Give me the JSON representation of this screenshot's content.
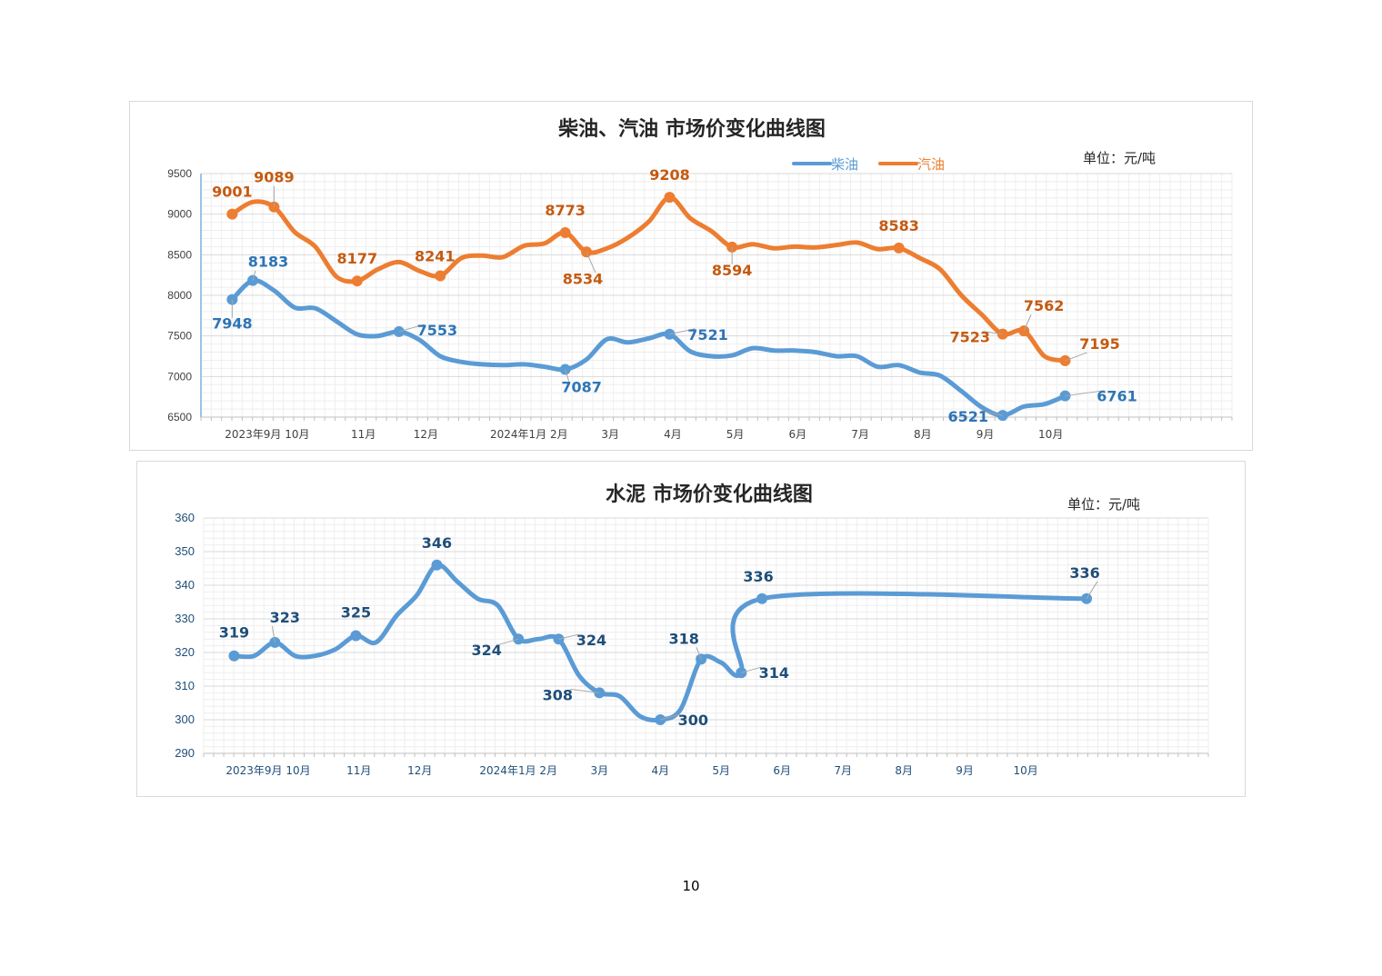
{
  "page_number": "10",
  "colors": {
    "diesel": "#5b9bd5",
    "diesel_label": "#2e75b6",
    "gasoline": "#ed7d31",
    "gasoline_label": "#c55a11",
    "cement": "#5b9bd5",
    "cement_label": "#1f4e79",
    "grid_major": "#d9d9d9",
    "grid_minor": "#eeeeee",
    "axis_text": "#404040",
    "axis_text_blue": "#1f4e79"
  },
  "chart_data": [
    {
      "type": "line",
      "title": "柴油、汽油  市场价变化曲线图",
      "unit": "单位：元/吨",
      "ylim": [
        6500,
        9500
      ],
      "yticks": [
        6500,
        7000,
        7500,
        8000,
        8500,
        9000,
        9500
      ],
      "xlim": [
        0,
        16.5
      ],
      "x_tick_labels": [
        {
          "x": 1.06,
          "label": "2023年9月 10月"
        },
        {
          "x": 2.6,
          "label": "11月"
        },
        {
          "x": 3.6,
          "label": "12月"
        },
        {
          "x": 5.25,
          "label": "2024年1月 2月"
        },
        {
          "x": 6.55,
          "label": "3月"
        },
        {
          "x": 7.55,
          "label": "4月"
        },
        {
          "x": 8.55,
          "label": "5月"
        },
        {
          "x": 9.55,
          "label": "6月"
        },
        {
          "x": 10.55,
          "label": "7月"
        },
        {
          "x": 11.55,
          "label": "8月"
        },
        {
          "x": 12.55,
          "label": "9月"
        },
        {
          "x": 13.6,
          "label": "10月"
        }
      ],
      "grid": true,
      "legend": {
        "position": "top-center",
        "entries": [
          "柴油",
          "汽油"
        ]
      },
      "series": [
        {
          "name": "柴油",
          "x": [
            0.5,
            0.83,
            1.17,
            1.5,
            1.83,
            2.17,
            2.5,
            2.83,
            3.17,
            3.5,
            3.83,
            4.17,
            4.5,
            4.83,
            5.17,
            5.5,
            5.83,
            6.17,
            6.5,
            6.83,
            7.17,
            7.5,
            7.83,
            8.17,
            8.5,
            8.83,
            9.17,
            9.5,
            9.83,
            10.17,
            10.5,
            10.83,
            11.17,
            11.5,
            11.83,
            12.17,
            12.5,
            12.83,
            13.17,
            13.5,
            13.83
          ],
          "values": [
            7948,
            8183,
            8060,
            7850,
            7840,
            7680,
            7520,
            7500,
            7553,
            7450,
            7250,
            7180,
            7150,
            7140,
            7150,
            7120,
            7087,
            7210,
            7460,
            7420,
            7470,
            7521,
            7310,
            7250,
            7260,
            7350,
            7320,
            7320,
            7300,
            7250,
            7250,
            7120,
            7140,
            7050,
            7010,
            6820,
            6620,
            6521,
            6630,
            6660,
            6761
          ],
          "markers": [
            0,
            1,
            8,
            16,
            21,
            37,
            40
          ]
        },
        {
          "name": "汽油",
          "x": [
            0.5,
            0.83,
            1.17,
            1.5,
            1.83,
            2.17,
            2.5,
            2.83,
            3.17,
            3.5,
            3.83,
            4.17,
            4.5,
            4.83,
            5.17,
            5.5,
            5.83,
            6.17,
            6.5,
            6.83,
            7.17,
            7.5,
            7.83,
            8.17,
            8.5,
            8.83,
            9.17,
            9.5,
            9.83,
            10.17,
            10.5,
            10.83,
            11.17,
            11.5,
            11.83,
            12.17,
            12.5,
            12.83,
            13.17,
            13.5,
            13.83
          ],
          "values": [
            9001,
            9150,
            9089,
            8780,
            8600,
            8230,
            8177,
            8320,
            8410,
            8300,
            8241,
            8460,
            8490,
            8470,
            8610,
            8640,
            8773,
            8534,
            8580,
            8710,
            8910,
            9208,
            8950,
            8790,
            8594,
            8630,
            8580,
            8600,
            8590,
            8620,
            8650,
            8570,
            8583,
            8460,
            8320,
            8000,
            7760,
            7523,
            7562,
            7250,
            7195
          ],
          "markers": [
            0,
            2,
            6,
            10,
            16,
            17,
            21,
            24,
            32,
            37,
            38,
            40
          ]
        }
      ],
      "data_labels": [
        {
          "series": 0,
          "text": "7948",
          "x": 0.5,
          "y": 7948
        },
        {
          "series": 0,
          "text": "8183",
          "x": 0.83,
          "y": 8183
        },
        {
          "series": 0,
          "text": "7553",
          "x": 3.17,
          "y": 7553
        },
        {
          "series": 0,
          "text": "7087",
          "x": 5.83,
          "y": 7087
        },
        {
          "series": 0,
          "text": "7521",
          "x": 7.5,
          "y": 7521
        },
        {
          "series": 0,
          "text": "6521",
          "x": 12.83,
          "y": 6521
        },
        {
          "series": 0,
          "text": "6761",
          "x": 13.83,
          "y": 6761
        },
        {
          "series": 1,
          "text": "9001",
          "x": 0.5,
          "y": 9001
        },
        {
          "series": 1,
          "text": "9089",
          "x": 1.17,
          "y": 9089
        },
        {
          "series": 1,
          "text": "8177",
          "x": 2.5,
          "y": 8177
        },
        {
          "series": 1,
          "text": "8241",
          "x": 3.83,
          "y": 8241
        },
        {
          "series": 1,
          "text": "8773",
          "x": 5.83,
          "y": 8773
        },
        {
          "series": 1,
          "text": "8534",
          "x": 6.17,
          "y": 8534
        },
        {
          "series": 1,
          "text": "9208",
          "x": 7.5,
          "y": 9208
        },
        {
          "series": 1,
          "text": "8594",
          "x": 8.5,
          "y": 8594
        },
        {
          "series": 1,
          "text": "8583",
          "x": 11.17,
          "y": 8583
        },
        {
          "series": 1,
          "text": "7523",
          "x": 12.83,
          "y": 7523
        },
        {
          "series": 1,
          "text": "7562",
          "x": 13.17,
          "y": 7562
        },
        {
          "series": 1,
          "text": "7195",
          "x": 13.83,
          "y": 7195
        }
      ]
    },
    {
      "type": "line",
      "title": "水泥  市场价变化曲线图",
      "unit": "单位：元/吨",
      "ylim": [
        290,
        360
      ],
      "yticks": [
        290,
        300,
        310,
        320,
        330,
        340,
        350,
        360
      ],
      "xlim": [
        0,
        16.5
      ],
      "x_tick_labels": [
        {
          "x": 1.06,
          "label": "2023年9月 10月"
        },
        {
          "x": 2.55,
          "label": "11月"
        },
        {
          "x": 3.55,
          "label": "12月"
        },
        {
          "x": 5.17,
          "label": "2024年1月 2月"
        },
        {
          "x": 6.5,
          "label": "3月"
        },
        {
          "x": 7.5,
          "label": "4月"
        },
        {
          "x": 8.5,
          "label": "5月"
        },
        {
          "x": 9.5,
          "label": "6月"
        },
        {
          "x": 10.5,
          "label": "7月"
        },
        {
          "x": 11.5,
          "label": "8月"
        },
        {
          "x": 12.5,
          "label": "9月"
        },
        {
          "x": 13.5,
          "label": "10月"
        }
      ],
      "grid": true,
      "series": [
        {
          "name": "",
          "x": [
            0.5,
            0.83,
            1.17,
            1.5,
            1.83,
            2.17,
            2.5,
            2.83,
            3.17,
            3.5,
            3.83,
            4.17,
            4.5,
            4.83,
            5.17,
            5.5,
            5.83,
            6.17,
            6.5,
            6.83,
            7.17,
            7.5,
            7.83,
            8.17,
            8.5,
            8.83,
            9.17,
            14.5
          ],
          "values": [
            319,
            319,
            323,
            319,
            319,
            321,
            325,
            323,
            331,
            337,
            346,
            341,
            336,
            334,
            324,
            324,
            324,
            313,
            308,
            307,
            301,
            300,
            303,
            318,
            317,
            314,
            336,
            336
          ],
          "markers": [
            0,
            2,
            6,
            10,
            14,
            16,
            18,
            21,
            23,
            25,
            26,
            27
          ]
        }
      ],
      "data_labels": [
        {
          "series": 0,
          "text": "319",
          "x": 0.5,
          "y": 319
        },
        {
          "series": 0,
          "text": "323",
          "x": 1.17,
          "y": 323
        },
        {
          "series": 0,
          "text": "325",
          "x": 2.5,
          "y": 325
        },
        {
          "series": 0,
          "text": "346",
          "x": 3.83,
          "y": 346
        },
        {
          "series": 0,
          "text": "324",
          "x": 5.17,
          "y": 324
        },
        {
          "series": 0,
          "text": "324",
          "x": 5.83,
          "y": 324
        },
        {
          "series": 0,
          "text": "308",
          "x": 6.5,
          "y": 308
        },
        {
          "series": 0,
          "text": "300",
          "x": 7.5,
          "y": 300
        },
        {
          "series": 0,
          "text": "318",
          "x": 8.17,
          "y": 318
        },
        {
          "series": 0,
          "text": "314",
          "x": 8.83,
          "y": 314
        },
        {
          "series": 0,
          "text": "336",
          "x": 9.17,
          "y": 336
        },
        {
          "series": 0,
          "text": "336",
          "x": 14.5,
          "y": 336
        }
      ]
    }
  ]
}
